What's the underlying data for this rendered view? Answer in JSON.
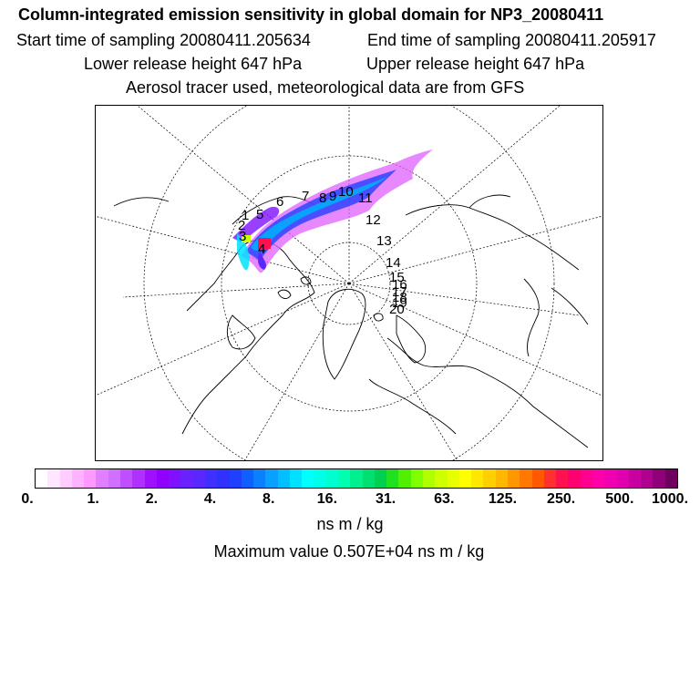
{
  "header": {
    "title": "Column-integrated emission sensitivity in global domain for NP3_20080411",
    "start_time": "Start time of sampling 20080411.205634",
    "end_time": "End time of sampling 20080411.205917",
    "lower_release": "Lower release height  647 hPa",
    "upper_release": "Upper release height  647 hPa",
    "tracer_note": "Aerosol tracer used, meteorological data are from GFS"
  },
  "map": {
    "projection": "north-polar-stereographic",
    "trajectory_labels": [
      "1",
      "2",
      "3",
      "4",
      "5",
      "6",
      "7",
      "8",
      "9",
      "10",
      "11",
      "12",
      "13",
      "14",
      "15",
      "16",
      "17",
      "18",
      "19",
      "20"
    ]
  },
  "colorbar": {
    "ticks": [
      "0.",
      "1.",
      "2.",
      "4.",
      "8.",
      "16.",
      "31.",
      "63.",
      "125.",
      "250.",
      "500.",
      "1000."
    ],
    "colors": [
      "#ffffff",
      "#ffe6ff",
      "#ffccff",
      "#ffb3ff",
      "#ff99ff",
      "#e080ff",
      "#d070ff",
      "#c050ff",
      "#b030ff",
      "#a010ff",
      "#9000ff",
      "#8010ff",
      "#6a20ff",
      "#5a28ff",
      "#4030ff",
      "#3030ff",
      "#2040ff",
      "#1060ff",
      "#0a80ff",
      "#0aa0ff",
      "#00c0ff",
      "#00e0ff",
      "#00ffff",
      "#00ffe8",
      "#00ffd0",
      "#00ffb0",
      "#00f090",
      "#00e070",
      "#00d050",
      "#20e020",
      "#50f000",
      "#80ff00",
      "#b0ff00",
      "#d0ff00",
      "#e8ff00",
      "#ffff00",
      "#ffe800",
      "#ffd000",
      "#ffb800",
      "#ff9800",
      "#ff7800",
      "#ff5800",
      "#ff3030",
      "#ff1050",
      "#ff0070",
      "#ff0090",
      "#ff00a8",
      "#f000b0",
      "#e000b0",
      "#c800a0",
      "#b00090",
      "#900078",
      "#700060"
    ],
    "units": "ns m / kg",
    "max_value": "Maximum value  0.507E+04 ns m / kg"
  }
}
